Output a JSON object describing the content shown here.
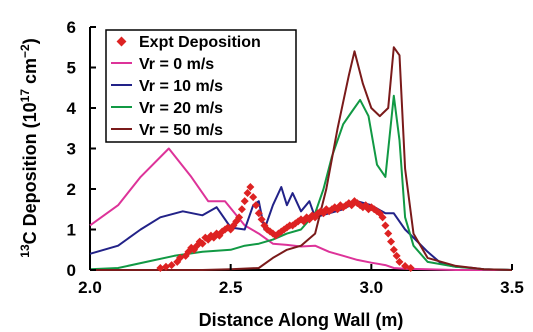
{
  "chart_data": {
    "type": "line",
    "xlabel": "Distance Along Wall (m)",
    "ylabel": "13C Deposition (10^17 cm^-2)",
    "ylabel_parts": {
      "sup1": "13",
      "main": "C Deposition (10",
      "sup2": "17",
      "unit": " cm",
      "sup3": "−2",
      "close": ")"
    },
    "xlim": [
      2.0,
      3.5
    ],
    "ylim": [
      0,
      6
    ],
    "x_ticks": [
      "2.0",
      "2.5",
      "3.0",
      "3.5"
    ],
    "y_ticks": [
      "0",
      "1",
      "2",
      "3",
      "4",
      "5",
      "6"
    ],
    "grid": false,
    "legend_position": "top-left",
    "legend": [
      "Expt Deposition",
      "Vr = 0 m/s",
      "Vr = 10 m/s",
      "Vr = 20 m/s",
      "Vr = 50 m/s"
    ],
    "colors": {
      "expt": "#dd2222",
      "vr0": "#dd3399",
      "vr10": "#222288",
      "vr20": "#119944",
      "vr50": "#7a1a1a"
    },
    "series": [
      {
        "name": "Vr = 0 m/s",
        "color": "#dd3399",
        "points": [
          [
            2.0,
            1.1
          ],
          [
            2.1,
            1.6
          ],
          [
            2.18,
            2.3
          ],
          [
            2.28,
            3.0
          ],
          [
            2.36,
            2.3
          ],
          [
            2.42,
            1.7
          ],
          [
            2.48,
            1.7
          ],
          [
            2.55,
            1.1
          ],
          [
            2.6,
            0.9
          ],
          [
            2.65,
            0.65
          ],
          [
            2.7,
            0.62
          ],
          [
            2.75,
            0.58
          ],
          [
            2.8,
            0.6
          ],
          [
            2.85,
            0.45
          ],
          [
            2.9,
            0.35
          ],
          [
            2.95,
            0.25
          ],
          [
            3.0,
            0.18
          ],
          [
            3.05,
            0.12
          ],
          [
            3.08,
            0.05
          ],
          [
            3.12,
            0.03
          ],
          [
            3.2,
            0.02
          ],
          [
            3.3,
            0.0
          ],
          [
            3.5,
            0.0
          ]
        ]
      },
      {
        "name": "Vr = 10 m/s",
        "color": "#222288",
        "points": [
          [
            2.0,
            0.4
          ],
          [
            2.1,
            0.6
          ],
          [
            2.18,
            1.0
          ],
          [
            2.25,
            1.3
          ],
          [
            2.33,
            1.45
          ],
          [
            2.4,
            1.35
          ],
          [
            2.45,
            1.55
          ],
          [
            2.5,
            1.05
          ],
          [
            2.55,
            1.0
          ],
          [
            2.58,
            1.6
          ],
          [
            2.6,
            1.7
          ],
          [
            2.62,
            1.0
          ],
          [
            2.65,
            1.6
          ],
          [
            2.68,
            2.05
          ],
          [
            2.7,
            1.6
          ],
          [
            2.72,
            1.9
          ],
          [
            2.75,
            1.45
          ],
          [
            2.78,
            1.7
          ],
          [
            2.8,
            1.3
          ],
          [
            2.85,
            1.4
          ],
          [
            2.9,
            1.5
          ],
          [
            2.95,
            1.7
          ],
          [
            3.0,
            1.6
          ],
          [
            3.05,
            1.4
          ],
          [
            3.08,
            1.4
          ],
          [
            3.12,
            1.0
          ],
          [
            3.15,
            0.8
          ],
          [
            3.2,
            0.45
          ],
          [
            3.25,
            0.15
          ],
          [
            3.3,
            0.08
          ],
          [
            3.35,
            0.06
          ],
          [
            3.4,
            0.02
          ],
          [
            3.5,
            0.0
          ]
        ]
      },
      {
        "name": "Vr = 20 m/s",
        "color": "#119944",
        "points": [
          [
            2.0,
            0.02
          ],
          [
            2.1,
            0.05
          ],
          [
            2.2,
            0.2
          ],
          [
            2.3,
            0.35
          ],
          [
            2.4,
            0.45
          ],
          [
            2.5,
            0.5
          ],
          [
            2.55,
            0.6
          ],
          [
            2.6,
            0.65
          ],
          [
            2.65,
            0.75
          ],
          [
            2.7,
            0.9
          ],
          [
            2.75,
            1.0
          ],
          [
            2.8,
            1.4
          ],
          [
            2.83,
            2.0
          ],
          [
            2.86,
            2.8
          ],
          [
            2.9,
            3.6
          ],
          [
            2.93,
            3.9
          ],
          [
            2.96,
            4.2
          ],
          [
            2.99,
            3.8
          ],
          [
            3.02,
            2.6
          ],
          [
            3.05,
            2.3
          ],
          [
            3.08,
            4.3
          ],
          [
            3.1,
            3.2
          ],
          [
            3.12,
            1.3
          ],
          [
            3.15,
            0.6
          ],
          [
            3.2,
            0.2
          ],
          [
            3.3,
            0.08
          ],
          [
            3.4,
            0.02
          ],
          [
            3.5,
            0.0
          ]
        ]
      },
      {
        "name": "Vr = 50 m/s",
        "color": "#7a1a1a",
        "points": [
          [
            2.0,
            0.0
          ],
          [
            2.3,
            0.0
          ],
          [
            2.4,
            0.0
          ],
          [
            2.5,
            0.02
          ],
          [
            2.6,
            0.05
          ],
          [
            2.65,
            0.3
          ],
          [
            2.7,
            0.5
          ],
          [
            2.75,
            0.6
          ],
          [
            2.8,
            0.9
          ],
          [
            2.84,
            2.0
          ],
          [
            2.88,
            3.5
          ],
          [
            2.92,
            4.8
          ],
          [
            2.94,
            5.4
          ],
          [
            2.97,
            4.6
          ],
          [
            3.0,
            4.0
          ],
          [
            3.03,
            3.8
          ],
          [
            3.06,
            4.0
          ],
          [
            3.08,
            5.5
          ],
          [
            3.1,
            5.3
          ],
          [
            3.12,
            2.5
          ],
          [
            3.15,
            0.9
          ],
          [
            3.2,
            0.3
          ],
          [
            3.3,
            0.1
          ],
          [
            3.4,
            0.02
          ],
          [
            3.5,
            0.0
          ]
        ]
      }
    ],
    "scatter": {
      "name": "Expt Deposition",
      "color": "#dd2222",
      "points": [
        [
          2.25,
          0.05
        ],
        [
          2.27,
          0.08
        ],
        [
          2.29,
          0.12
        ],
        [
          2.31,
          0.2
        ],
        [
          2.32,
          0.3
        ],
        [
          2.34,
          0.35
        ],
        [
          2.35,
          0.45
        ],
        [
          2.36,
          0.55
        ],
        [
          2.37,
          0.5
        ],
        [
          2.38,
          0.6
        ],
        [
          2.39,
          0.7
        ],
        [
          2.4,
          0.65
        ],
        [
          2.41,
          0.8
        ],
        [
          2.42,
          0.75
        ],
        [
          2.43,
          0.85
        ],
        [
          2.44,
          0.8
        ],
        [
          2.45,
          0.9
        ],
        [
          2.46,
          0.85
        ],
        [
          2.47,
          0.95
        ],
        [
          2.48,
          1.0
        ],
        [
          2.49,
          1.05
        ],
        [
          2.5,
          1.0
        ],
        [
          2.51,
          1.1
        ],
        [
          2.52,
          1.2
        ],
        [
          2.53,
          1.3
        ],
        [
          2.54,
          1.5
        ],
        [
          2.55,
          1.7
        ],
        [
          2.56,
          1.9
        ],
        [
          2.57,
          2.05
        ],
        [
          2.58,
          1.8
        ],
        [
          2.59,
          1.6
        ],
        [
          2.6,
          1.4
        ],
        [
          2.61,
          1.25
        ],
        [
          2.62,
          1.1
        ],
        [
          2.63,
          1.0
        ],
        [
          2.64,
          0.95
        ],
        [
          2.65,
          0.9
        ],
        [
          2.66,
          0.85
        ],
        [
          2.67,
          0.9
        ],
        [
          2.68,
          0.95
        ],
        [
          2.69,
          1.0
        ],
        [
          2.7,
          1.05
        ],
        [
          2.71,
          1.1
        ],
        [
          2.72,
          1.1
        ],
        [
          2.73,
          1.15
        ],
        [
          2.74,
          1.2
        ],
        [
          2.75,
          1.25
        ],
        [
          2.76,
          1.2
        ],
        [
          2.77,
          1.3
        ],
        [
          2.78,
          1.25
        ],
        [
          2.79,
          1.35
        ],
        [
          2.8,
          1.3
        ],
        [
          2.81,
          1.4
        ],
        [
          2.82,
          1.45
        ],
        [
          2.83,
          1.4
        ],
        [
          2.84,
          1.5
        ],
        [
          2.85,
          1.45
        ],
        [
          2.86,
          1.5
        ],
        [
          2.87,
          1.55
        ],
        [
          2.88,
          1.5
        ],
        [
          2.89,
          1.6
        ],
        [
          2.9,
          1.55
        ],
        [
          2.91,
          1.6
        ],
        [
          2.92,
          1.65
        ],
        [
          2.93,
          1.6
        ],
        [
          2.94,
          1.7
        ],
        [
          2.95,
          1.65
        ],
        [
          2.96,
          1.6
        ],
        [
          2.97,
          1.55
        ],
        [
          2.98,
          1.6
        ],
        [
          2.99,
          1.5
        ],
        [
          3.0,
          1.55
        ],
        [
          3.01,
          1.5
        ],
        [
          3.02,
          1.45
        ],
        [
          3.03,
          1.4
        ],
        [
          3.04,
          1.3
        ],
        [
          3.05,
          1.1
        ],
        [
          3.06,
          0.9
        ],
        [
          3.07,
          0.7
        ],
        [
          3.08,
          0.5
        ],
        [
          3.09,
          0.35
        ],
        [
          3.1,
          0.2
        ],
        [
          3.12,
          0.1
        ],
        [
          3.14,
          0.05
        ]
      ]
    }
  }
}
